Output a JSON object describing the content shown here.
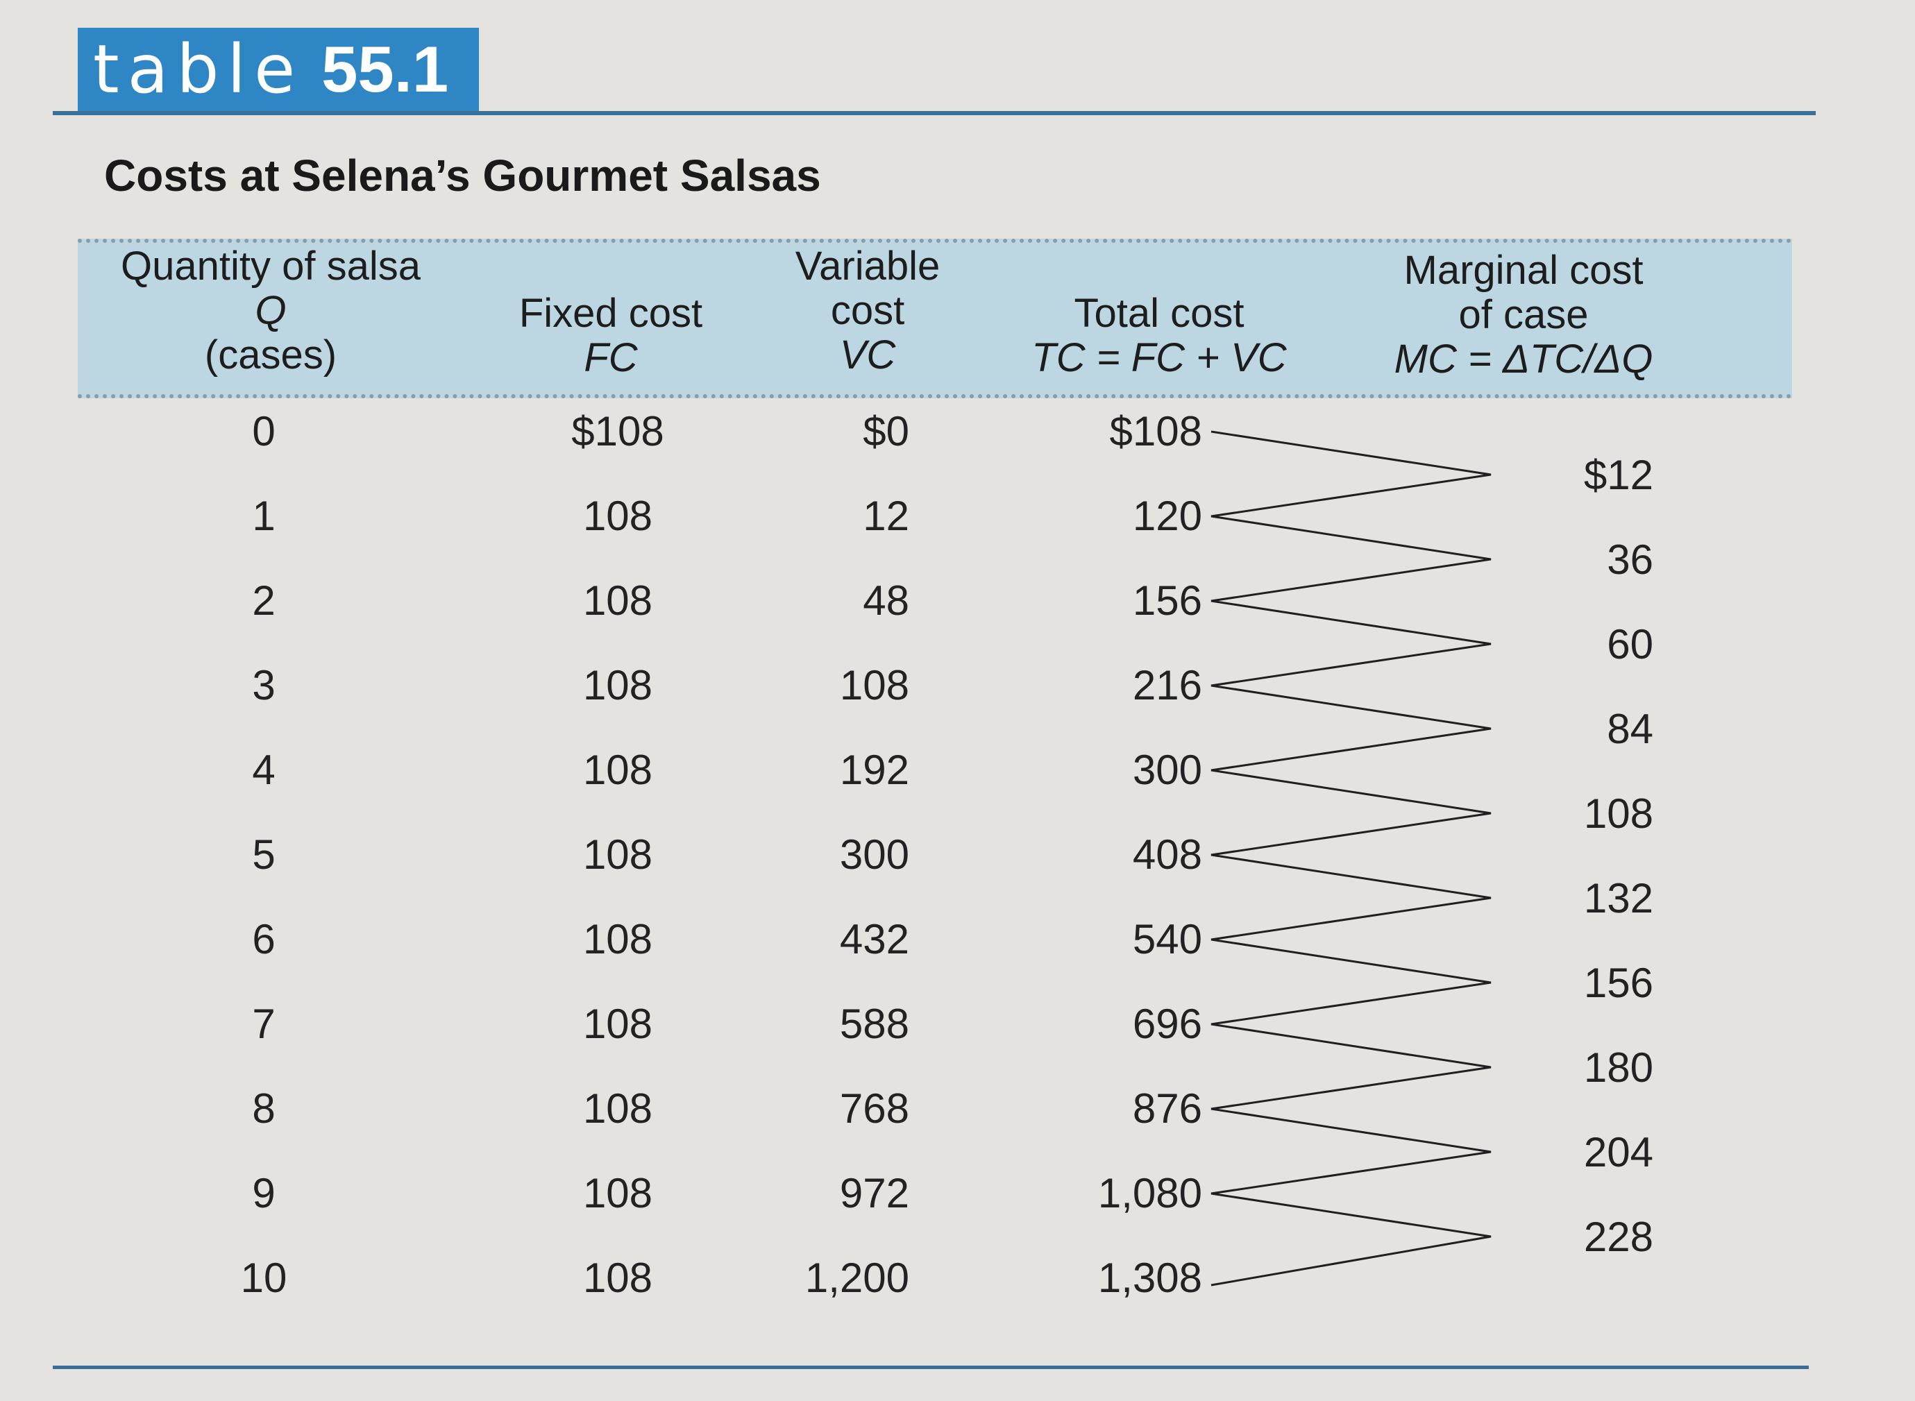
{
  "label": {
    "word": "table",
    "number": "55.1"
  },
  "title": "Costs at Selena’s Gourmet Salsas",
  "columns": [
    {
      "lines": [
        "Quantity of salsa",
        "Q",
        "(cases)"
      ]
    },
    {
      "lines": [
        "Fixed cost",
        "FC"
      ]
    },
    {
      "lines": [
        "Variable",
        "cost",
        "VC"
      ]
    },
    {
      "lines": [
        "Total cost",
        "TC = FC + VC"
      ]
    },
    {
      "lines": [
        "Marginal cost",
        "of case",
        "MC = ΔTC/ΔQ"
      ]
    }
  ],
  "rows": [
    {
      "q": "0",
      "fc": "$108",
      "vc": "$0",
      "tc": "$108"
    },
    {
      "q": "1",
      "fc": "108",
      "vc": "12",
      "tc": "120"
    },
    {
      "q": "2",
      "fc": "108",
      "vc": "48",
      "tc": "156"
    },
    {
      "q": "3",
      "fc": "108",
      "vc": "108",
      "tc": "216"
    },
    {
      "q": "4",
      "fc": "108",
      "vc": "192",
      "tc": "300"
    },
    {
      "q": "5",
      "fc": "108",
      "vc": "300",
      "tc": "408"
    },
    {
      "q": "6",
      "fc": "108",
      "vc": "432",
      "tc": "540"
    },
    {
      "q": "7",
      "fc": "108",
      "vc": "588",
      "tc": "696"
    },
    {
      "q": "8",
      "fc": "108",
      "vc": "768",
      "tc": "876"
    },
    {
      "q": "9",
      "fc": "108",
      "vc": "972",
      "tc": "1,080"
    },
    {
      "q": "10",
      "fc": "108",
      "vc": "1,200",
      "tc": "1,308"
    }
  ],
  "marginal_costs": [
    "$12",
    "36",
    "60",
    "84",
    "108",
    "132",
    "156",
    "180",
    "204",
    "228"
  ]
}
